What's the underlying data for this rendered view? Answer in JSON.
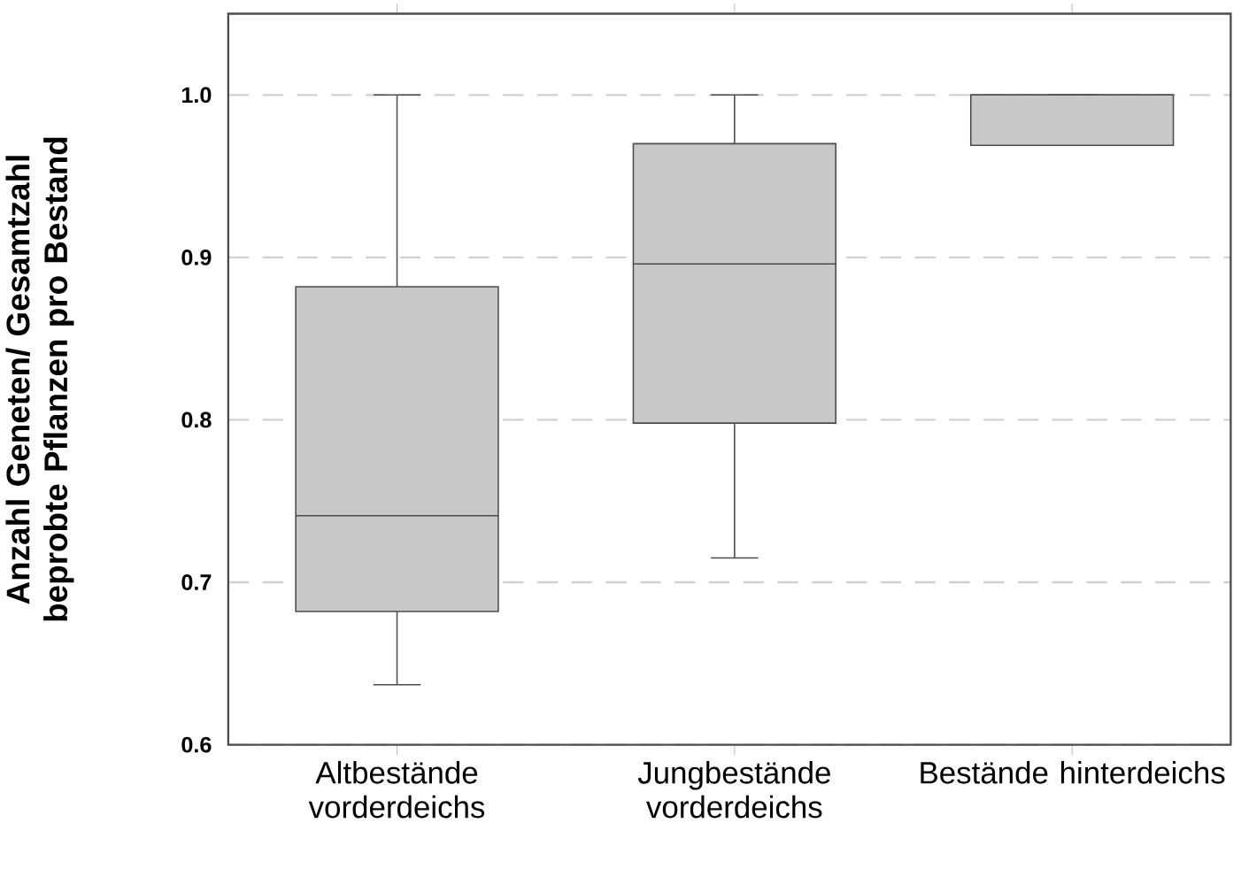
{
  "chart_data": {
    "type": "box",
    "ylabel": "Anzahl Geneten/ Gesamtzahl beprobte Pflanzen pro Bestand",
    "categories": [
      "Altbestände vorderdeichs",
      "Jungbestände vorderdeichs",
      "Bestände hinterdeichs"
    ],
    "boxes": [
      {
        "low": 0.637,
        "q1": 0.682,
        "median": 0.741,
        "q3": 0.882,
        "high": 1.0
      },
      {
        "low": 0.715,
        "q1": 0.798,
        "median": 0.896,
        "q3": 0.97,
        "high": 1.0
      },
      {
        "low": 0.969,
        "q1": 0.969,
        "median": 1.0,
        "q3": 1.0,
        "high": 1.0
      }
    ],
    "color": "#c8c8c8",
    "ylim": [
      0.6,
      1.05
    ],
    "yticks": [
      0.6,
      0.7,
      0.8,
      0.9,
      {
        "value": 1,
        "label": "1.0"
      }
    ],
    "grid": "y"
  }
}
